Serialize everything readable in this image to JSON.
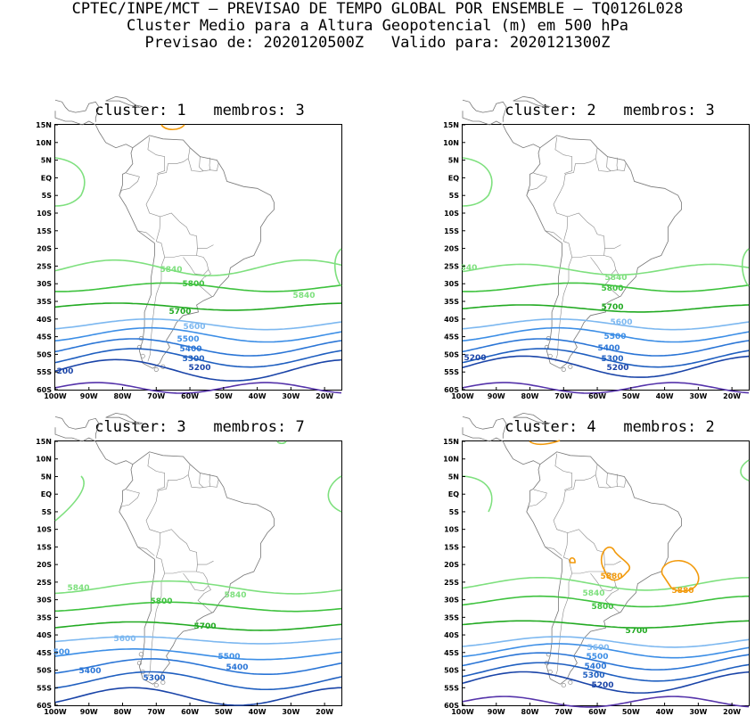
{
  "header": {
    "line1": "CPTEC/INPE/MCT — PREVISAO DE TEMPO GLOBAL POR ENSEMBLE — TQ0126L028",
    "line2": "Cluster Medio para a Altura Geopotencial (m) em 500 hPa",
    "line3": "Previsao de: 2020120500Z   Valido para: 2020121300Z"
  },
  "axes": {
    "lat_labels": [
      "15N",
      "10N",
      "5N",
      "EQ",
      "5S",
      "10S",
      "15S",
      "20S",
      "25S",
      "30S",
      "35S",
      "40S",
      "45S",
      "50S",
      "55S",
      "60S"
    ],
    "lon_labels": [
      "100W",
      "90W",
      "80W",
      "70W",
      "60W",
      "50W",
      "40W",
      "30W",
      "20W"
    ]
  },
  "contour_colors": {
    "5200": "#1a44a8",
    "5300": "#1f5fc0",
    "5400": "#2a75d6",
    "5500": "#3c8ee6",
    "5600": "#7db8f0",
    "5700": "#22aa22",
    "5800": "#3ec23e",
    "5840": "#7ee07e",
    "5880": "#f29a0c",
    "deep": "#5533aa"
  },
  "panels": [
    {
      "title": "cluster: 1   membros: 3",
      "labels": [
        {
          "text": "5840",
          "color_key": "5840"
        },
        {
          "text": "5840",
          "color_key": "5840"
        },
        {
          "text": "5800",
          "color_key": "5800"
        },
        {
          "text": "5700",
          "color_key": "5700"
        },
        {
          "text": "5600",
          "color_key": "5600"
        },
        {
          "text": "5500",
          "color_key": "5500"
        },
        {
          "text": "5400",
          "color_key": "5400"
        },
        {
          "text": "5300",
          "color_key": "5300"
        },
        {
          "text": "5200",
          "color_key": "5200"
        },
        {
          "text": "200",
          "color_key": "5200"
        }
      ]
    },
    {
      "title": "cluster: 2   membros: 3",
      "labels": [
        {
          "text": "5840",
          "color_key": "5840"
        },
        {
          "text": "5800",
          "color_key": "5800"
        },
        {
          "text": "5700",
          "color_key": "5700"
        },
        {
          "text": "5600",
          "color_key": "5600"
        },
        {
          "text": "5500",
          "color_key": "5500"
        },
        {
          "text": "5400",
          "color_key": "5400"
        },
        {
          "text": "5300",
          "color_key": "5300"
        },
        {
          "text": "5200",
          "color_key": "5200"
        },
        {
          "text": "5200",
          "color_key": "5200"
        },
        {
          "text": "340",
          "color_key": "5840"
        }
      ]
    },
    {
      "title": "cluster: 3   membros: 7",
      "labels": [
        {
          "text": "5840",
          "color_key": "5840"
        },
        {
          "text": "5840",
          "color_key": "5840"
        },
        {
          "text": "5800",
          "color_key": "5800"
        },
        {
          "text": "5700",
          "color_key": "5700"
        },
        {
          "text": "5600",
          "color_key": "5600"
        },
        {
          "text": "5500",
          "color_key": "5500"
        },
        {
          "text": "5400",
          "color_key": "5400"
        },
        {
          "text": "5400",
          "color_key": "5400"
        },
        {
          "text": "5300",
          "color_key": "5300"
        },
        {
          "text": "500",
          "color_key": "5500"
        }
      ]
    },
    {
      "title": "cluster: 4   membros: 2",
      "labels": [
        {
          "text": "5880",
          "color_key": "5880"
        },
        {
          "text": "5880",
          "color_key": "5880"
        },
        {
          "text": "5840",
          "color_key": "5840"
        },
        {
          "text": "5800",
          "color_key": "5800"
        },
        {
          "text": "5700",
          "color_key": "5700"
        },
        {
          "text": "5600",
          "color_key": "5600"
        },
        {
          "text": "5500",
          "color_key": "5500"
        },
        {
          "text": "5400",
          "color_key": "5400"
        },
        {
          "text": "5300",
          "color_key": "5300"
        },
        {
          "text": "5200",
          "color_key": "5200"
        }
      ]
    }
  ]
}
